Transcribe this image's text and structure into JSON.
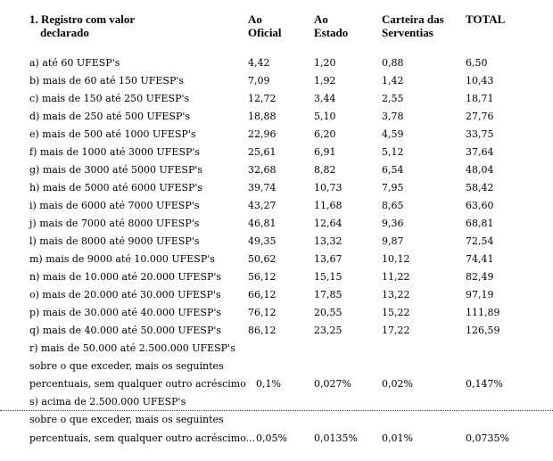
{
  "header": {
    "section_num": "1.",
    "col0_line1": "Registro com valor",
    "col0_line2": "declarado",
    "col1_line1": "Ao",
    "col1_line2": "Oficial",
    "col2_line1": "Ao",
    "col2_line2": "Estado",
    "col3_line1": "Carteira das",
    "col3_line2": "Serventias",
    "col4": "TOTAL"
  },
  "rows": [
    {
      "label": "a) até 60 UFESP's",
      "oficial": "4,42",
      "estado": "1,20",
      "carteira": "0,88",
      "total": "6,50"
    },
    {
      "label": "b) mais de 60 até 150 UFESP's",
      "oficial": "7,09",
      "estado": "1,92",
      "carteira": "1,42",
      "total": "10,43"
    },
    {
      "label": "c) mais de 150 até 250 UFESP's",
      "oficial": "12,72",
      "estado": "3,44",
      "carteira": "2,55",
      "total": "18,71"
    },
    {
      "label": "d) mais de 250 até 500 UFESP's",
      "oficial": "18,88",
      "estado": "5,10",
      "carteira": "3,78",
      "total": "27,76"
    },
    {
      "label": "e) mais de 500 até 1000 UFESP's",
      "oficial": "22,96",
      "estado": "6,20",
      "carteira": "4,59",
      "total": "33,75"
    },
    {
      "label": "f) mais de 1000 até 3000 UFESP's",
      "oficial": "25,61",
      "estado": "6,91",
      "carteira": "5,12",
      "total": "37,64"
    },
    {
      "label": "g) mais de 3000 até 5000 UFESP's",
      "oficial": "32,68",
      "estado": "8,82",
      "carteira": "6,54",
      "total": "48,04"
    },
    {
      "label": "h) mais de 5000 até 6000 UFESP's",
      "oficial": "39,74",
      "estado": "10,73",
      "carteira": "7,95",
      "total": "58,42"
    },
    {
      "label": "i) mais de 6000 até 7000 UFESP's",
      "oficial": "43,27",
      "estado": "11,68",
      "carteira": "8,65",
      "total": "63,60"
    },
    {
      "label": "j) mais de 7000 até 8000 UFESP's",
      "oficial": "46,81",
      "estado": "12,64",
      "carteira": "9,36",
      "total": "68,81"
    },
    {
      "label": "l) mais de 8000 até 9000 UFESP's",
      "oficial": "49,35",
      "estado": "13,32",
      "carteira": "9,87",
      "total": "72,54"
    },
    {
      "label": "m) mais de 9000 até 10.000 UFESP's",
      "oficial": "50,62",
      "estado": "13,67",
      "carteira": "10,12",
      "total": "74,41"
    },
    {
      "label": "n) mais de 10.000 até 20.000 UFESP's",
      "oficial": "56,12",
      "estado": "15,15",
      "carteira": "11,22",
      "total": "82,49"
    },
    {
      "label": "o) mais de 20.000 até 30.000 UFESP's",
      "oficial": "66,12",
      "estado": "17,85",
      "carteira": "13,22",
      "total": "97,19"
    },
    {
      "label": "p) mais de 30.000 até 40.000 UFESP's",
      "oficial": "76,12",
      "estado": "20,55",
      "carteira": "15,22",
      "total": "111,89"
    },
    {
      "label": "q) mais de 40.000 até 50.000 UFESP's",
      "oficial": "86,12",
      "estado": "23,25",
      "carteira": "17,22",
      "total": "126,59"
    }
  ],
  "r": {
    "line1": "r) mais de 50.000 até 2.500.000 UFESP's",
    "line2": "sobre o que exceder, mais os seguintes",
    "line3": "percentuais, sem qualquer outro acréscimo",
    "oficial": "0,1%",
    "estado": "0,027%",
    "carteira": "0,02%",
    "total": "0,147%"
  },
  "s": {
    "line1": "s) acima de 2.500.000 UFESP's",
    "line2": "sobre o que exceder, mais os seguintes",
    "line3": "percentuais, sem qualquer outro acréscimo...",
    "oficial": "0,05%",
    "estado": "0,0135%",
    "carteira": "0,01%",
    "total": "0,0735%"
  }
}
